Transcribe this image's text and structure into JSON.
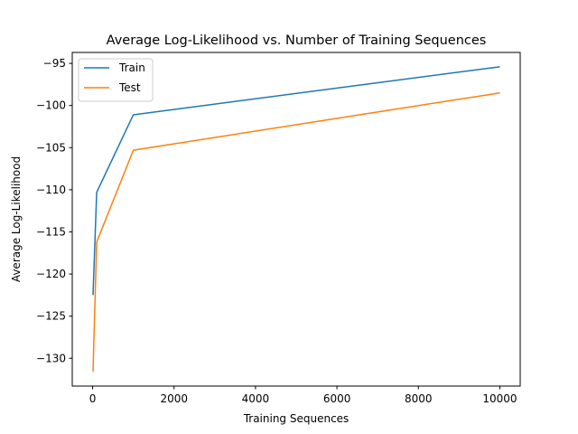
{
  "chart_data": {
    "type": "line",
    "title": "Average Log-Likelihood vs. Number of Training Sequences",
    "xlabel": "Training Sequences",
    "ylabel": "Average Log-Likelihood",
    "xlim": [
      -500,
      10500
    ],
    "ylim": [
      -133.3,
      -93.7
    ],
    "xticks": [
      0,
      2000,
      4000,
      6000,
      8000,
      10000
    ],
    "yticks": [
      -95,
      -100,
      -105,
      -110,
      -115,
      -120,
      -125,
      -130
    ],
    "grid": false,
    "legend_position": "top-left",
    "x": [
      10,
      100,
      1000,
      10000
    ],
    "series": [
      {
        "name": "Train",
        "color": "#1f77b4",
        "values": [
          -122.5,
          -110.3,
          -101.1,
          -95.4
        ]
      },
      {
        "name": "Test",
        "color": "#ff7f0e",
        "values": [
          -131.6,
          -116.2,
          -105.3,
          -98.5
        ]
      }
    ]
  }
}
